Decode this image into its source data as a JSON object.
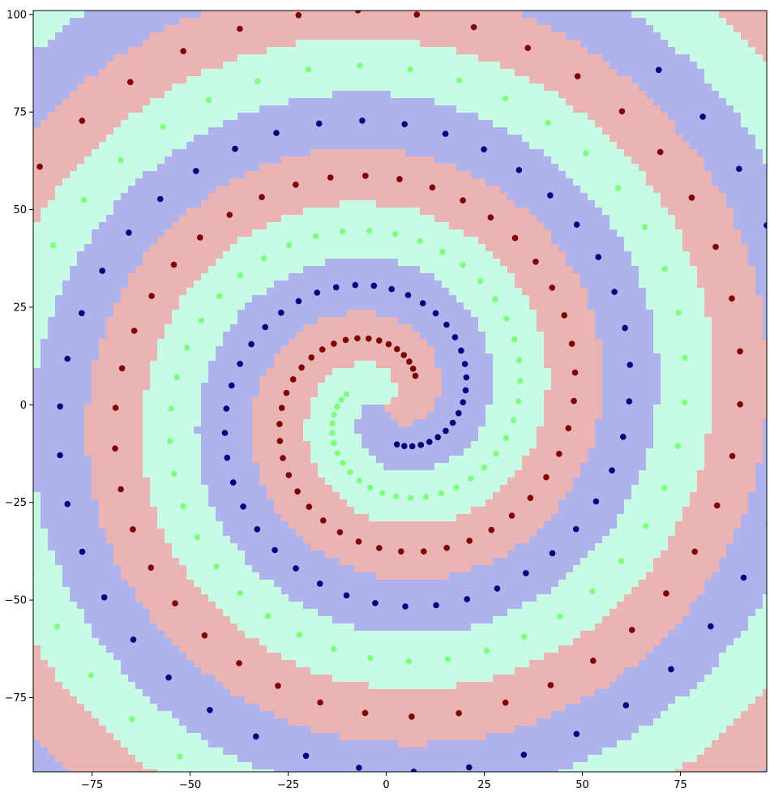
{
  "chart_data": {
    "type": "scatter",
    "title": "",
    "xlabel": "",
    "ylabel": "",
    "xlim": [
      -90,
      97
    ],
    "ylim": [
      -94,
      101
    ],
    "grid": false,
    "legend": "none",
    "x_ticks": [
      -75,
      -50,
      -25,
      0,
      25,
      50,
      75
    ],
    "x_tick_labels": [
      "−75",
      "−50",
      "−25",
      "0",
      "25",
      "50",
      "75"
    ],
    "y_ticks": [
      -75,
      -50,
      -25,
      0,
      25,
      50,
      75,
      100
    ],
    "y_tick_labels": [
      "−75",
      "−50",
      "−25",
      "0",
      "25",
      "50",
      "75",
      "100"
    ],
    "background": "decision regions for three classes shown as filled color bands",
    "region_colors": [
      "#b0b2ee",
      "#c7fbe6",
      "#ecb3b3"
    ],
    "series": [
      {
        "color": "#00007f",
        "region_color": "#b0b2ee",
        "phase_deg": 0
      },
      {
        "color": "#7fff7f",
        "region_color": "#c7fbe6",
        "phase_deg": 240
      },
      {
        "color": "#7f0000",
        "region_color": "#ecb3b3",
        "phase_deg": 120
      }
    ],
    "spiral": {
      "start_radius": 10.5,
      "growth_per_turn": 42.5,
      "start_angle_deg": -75,
      "turns": 2.35,
      "points_per_series": 100
    }
  }
}
